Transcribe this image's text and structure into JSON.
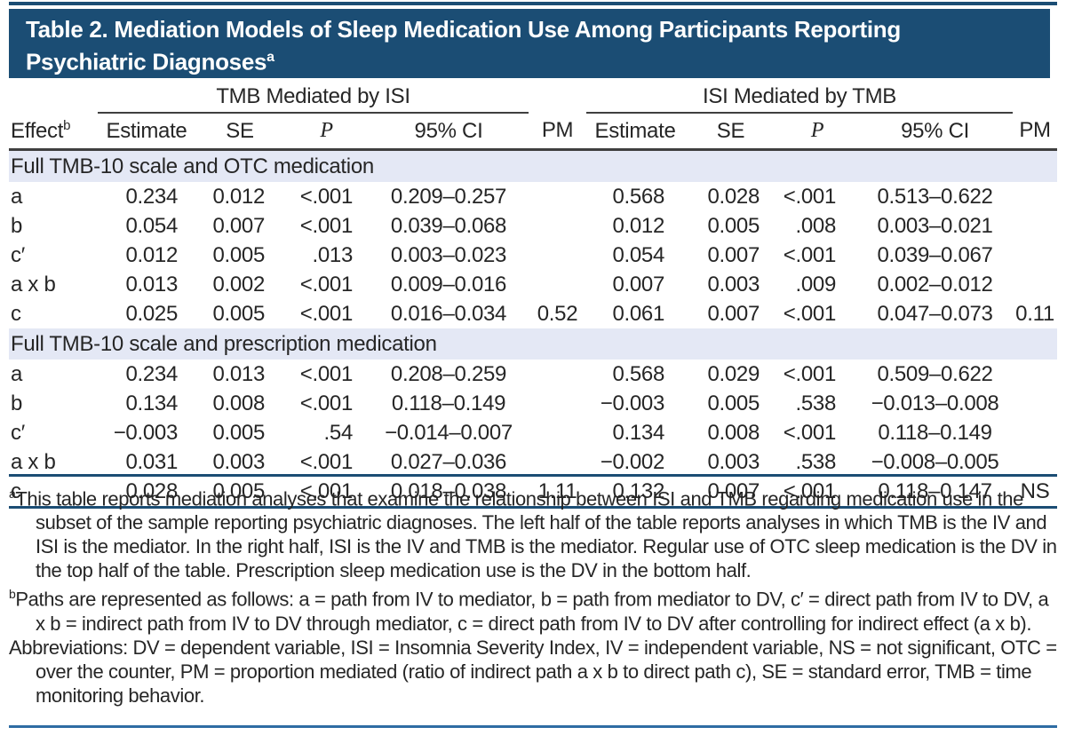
{
  "colors": {
    "title_bar_navy": "#1b4d74",
    "section_band_lavender": "#e4e8f5",
    "header_rule_dark": "#3f3f3f",
    "bottom_line_steel_blue": "#2e6ca3"
  },
  "title": {
    "line1": "Table 2. Mediation Models of Sleep Medication Use Among Participants Reporting",
    "line2": "Psychiatric Diagnoses",
    "sup": "a"
  },
  "table": {
    "group_left": "TMB Mediated by ISI",
    "group_right": "ISI Mediated by TMB",
    "columns": {
      "effect_label": "Effect",
      "effect_sup": "b",
      "left": [
        "Estimate",
        "SE",
        "P",
        "95% CI",
        "PM"
      ],
      "right": [
        "Estimate",
        "SE",
        "P",
        "95% CI",
        "PM"
      ]
    },
    "sections": [
      {
        "label": "Full TMB-10 scale and OTC medication",
        "rows": [
          {
            "cells": [
              "a",
              "0.234",
              "0.012",
              "<.001",
              "0.209–0.257",
              "",
              "0.568",
              "0.028",
              "<.001",
              "0.513–0.622",
              ""
            ]
          },
          {
            "cells": [
              "b",
              "0.054",
              "0.007",
              "<.001",
              "0.039–0.068",
              "",
              "0.012",
              "0.005",
              ".008",
              "0.003–0.021",
              ""
            ]
          },
          {
            "cells": [
              "c′",
              "0.012",
              "0.005",
              ".013",
              "0.003–0.023",
              "",
              "0.054",
              "0.007",
              "<.001",
              "0.039–0.067",
              ""
            ]
          },
          {
            "cells": [
              "a x b",
              "0.013",
              "0.002",
              "<.001",
              "0.009–0.016",
              "",
              "0.007",
              "0.003",
              ".009",
              "0.002–0.012",
              ""
            ]
          },
          {
            "cells": [
              "c",
              "0.025",
              "0.005",
              "<.001",
              "0.016–0.034",
              "0.52",
              "0.061",
              "0.007",
              "<.001",
              "0.047–0.073",
              "0.11"
            ]
          }
        ]
      },
      {
        "label": "Full TMB-10 scale and prescription medication",
        "rows": [
          {
            "cells": [
              "a",
              "0.234",
              "0.013",
              "<.001",
              "0.208–0.259",
              "",
              "0.568",
              "0.029",
              "<.001",
              "0.509–0.622",
              ""
            ]
          },
          {
            "cells": [
              "b",
              "0.134",
              "0.008",
              "<.001",
              "0.118–0.149",
              "",
              "−0.003",
              "0.005",
              ".538",
              "−0.013–0.008",
              ""
            ]
          },
          {
            "cells": [
              "c′",
              "−0.003",
              "0.005",
              ".54",
              "−0.014–0.007",
              "",
              "0.134",
              "0.008",
              "<.001",
              "0.118–0.149",
              ""
            ]
          },
          {
            "cells": [
              "a x b",
              "0.031",
              "0.003",
              "<.001",
              "0.027–0.036",
              "",
              "−0.002",
              "0.003",
              ".538",
              "−0.008–0.005",
              ""
            ]
          },
          {
            "cells": [
              "c",
              "0.028",
              "0.005",
              "<.001",
              "0.018–0.038",
              "1.11",
              "0.132",
              "0.007",
              "<.001",
              "0.118–0.147",
              "NS"
            ]
          }
        ]
      }
    ]
  },
  "footnotes": {
    "a_marker": "a",
    "a_text": "This table reports mediation analyses that examine the relationship between ISI and TMB regarding medication use in the subset of the sample reporting psychiatric diagnoses. The left half of the table reports analyses in which TMB is the IV and ISI is the mediator. In the right half, ISI is the IV and TMB is the mediator. Regular use of OTC sleep medication is the DV in the top half of the table. Prescription sleep medication use is the DV in the bottom half.",
    "b_marker": "b",
    "b_text": "Paths are represented as follows: a = path from IV to mediator, b = path from mediator to DV, c′ = direct path from IV to DV, a x b = indirect path from IV to DV through mediator, c = direct path from IV to DV after controlling for indirect effect (a x b).",
    "abbreviations": "Abbreviations: DV = dependent variable, ISI = Insomnia Severity Index, IV = independent variable, NS = not significant, OTC = over the counter, PM = proportion mediated (ratio of indirect path a x b to direct path c), SE = standard error, TMB = time monitoring behavior."
  }
}
